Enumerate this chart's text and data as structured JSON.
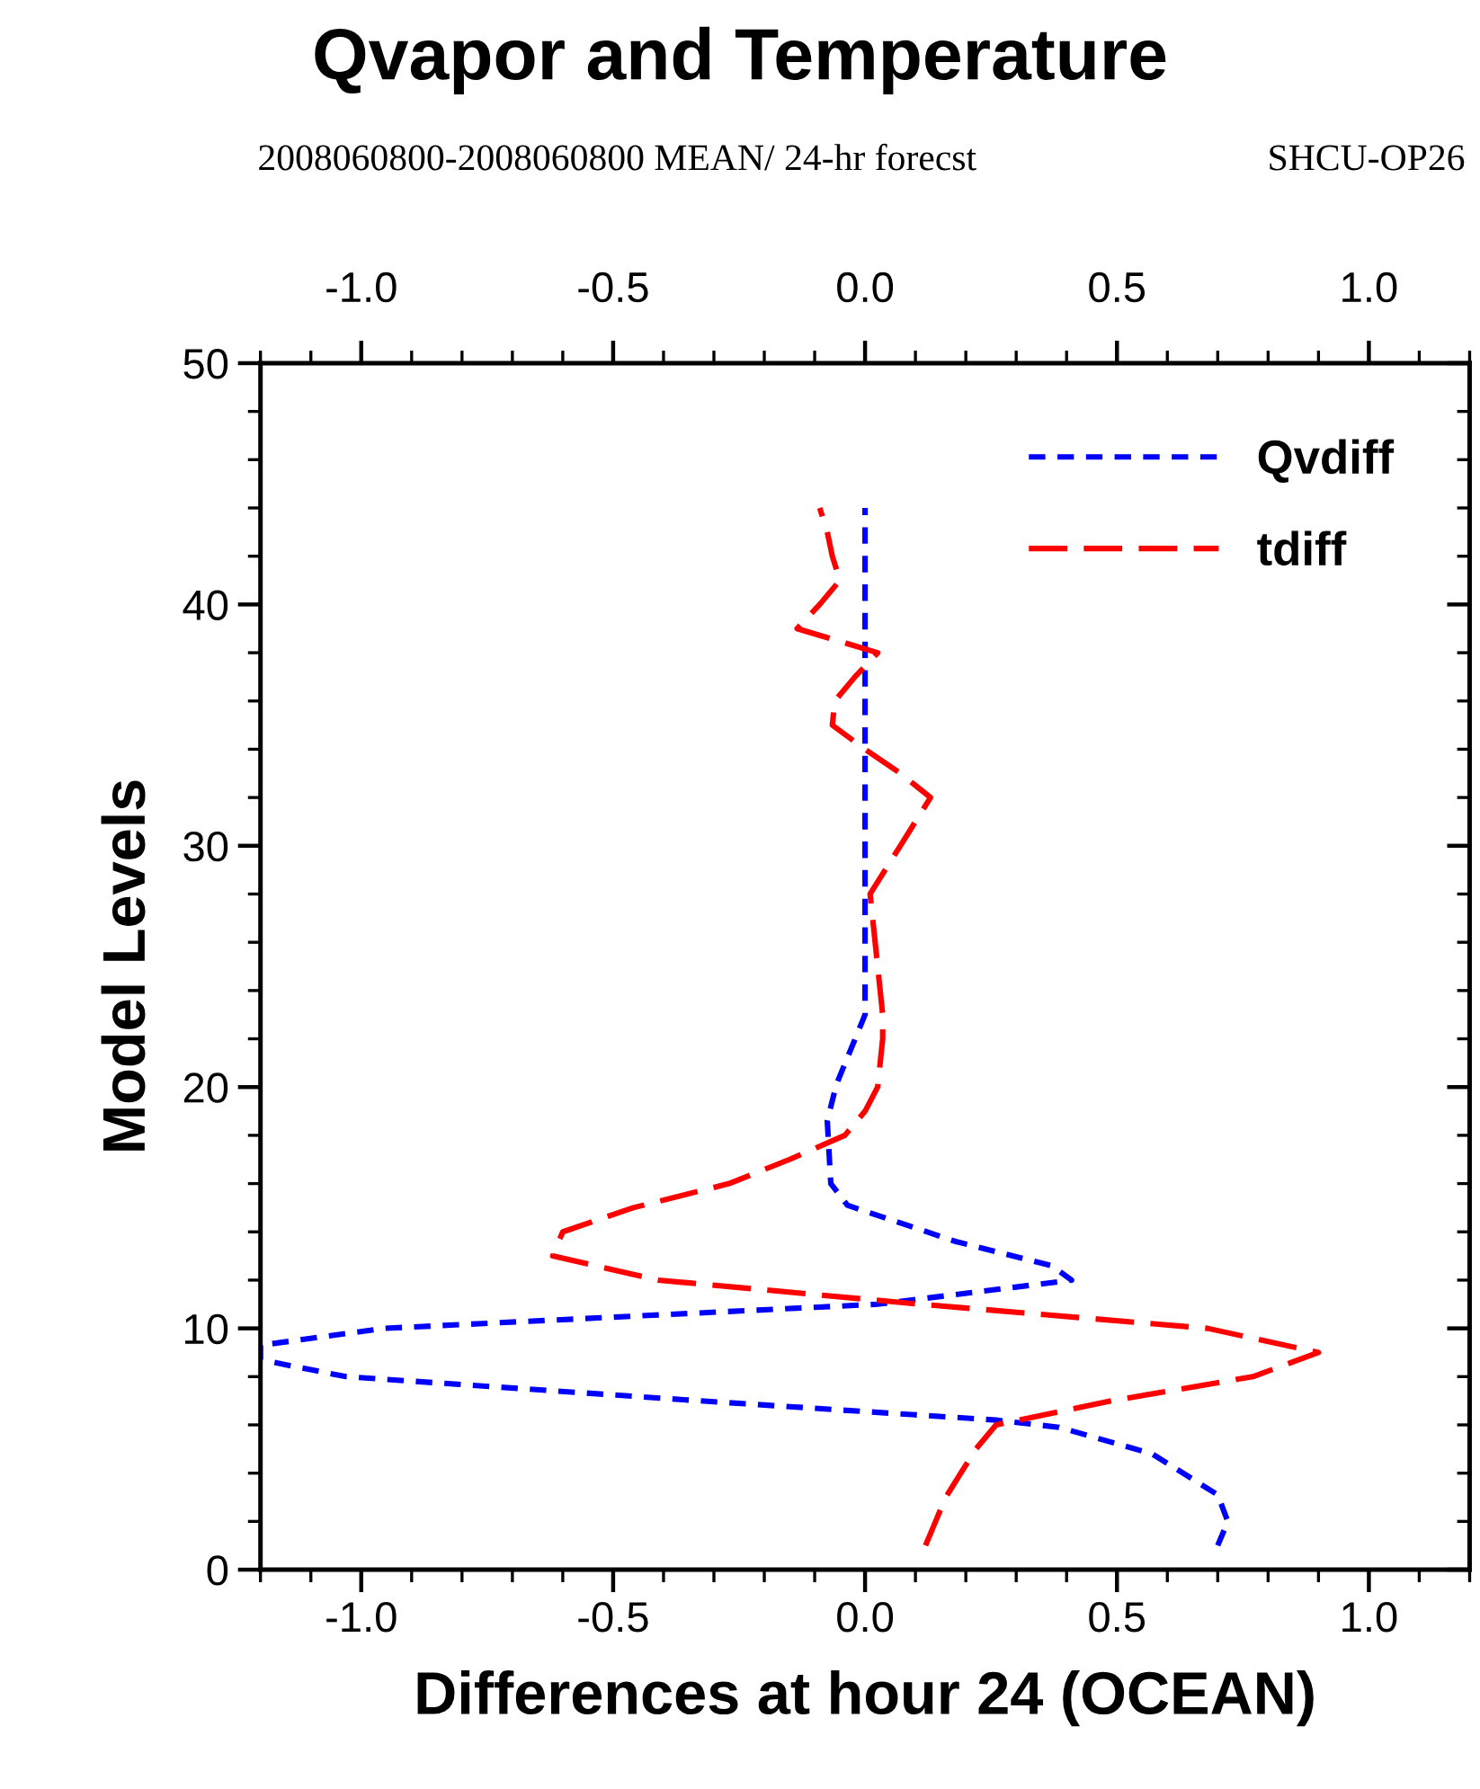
{
  "chart_data": {
    "type": "line",
    "title": "Qvapor and Temperature",
    "subtitle": "2008060800-2008060800 MEAN/ 24-hr forecst",
    "annotations": [
      "SHCU-OP26"
    ],
    "xlabel": "Differences at hour 24 (OCEAN)",
    "ylabel": "Model Levels",
    "xlim": [
      -1.2,
      1.2
    ],
    "xticks": [
      {
        "value": -1.0,
        "label": "-1.0"
      },
      {
        "value": -0.5,
        "label": "-0.5"
      },
      {
        "value": 0.0,
        "label": "0.0"
      },
      {
        "value": 0.5,
        "label": "0.5"
      },
      {
        "value": 1.0,
        "label": "1.0"
      }
    ],
    "x2lim": [
      -1.2,
      1.2
    ],
    "x2ticks": [
      {
        "value": -1.0,
        "label": "-1.0"
      },
      {
        "value": -0.5,
        "label": "-0.5"
      },
      {
        "value": 0.0,
        "label": "0.0"
      },
      {
        "value": 0.5,
        "label": "0.5"
      },
      {
        "value": 1.0,
        "label": "1.0"
      }
    ],
    "ylim": [
      0,
      50
    ],
    "yticks": [
      0,
      10,
      20,
      30,
      40,
      50
    ],
    "grid": false,
    "legend": "top right",
    "marker": "none",
    "series": [
      {
        "name": "Qvdiff",
        "color": "#0000ff",
        "line_style": "dotted",
        "x": [
          0.7,
          0.72,
          0.7,
          0.57,
          0.385,
          0.26,
          -0.33,
          -1.03,
          -1.2,
          -1.2,
          -0.955,
          0.025,
          0.41,
          0.37,
          0.18,
          -0.035,
          -0.068,
          -0.075,
          -0.057,
          0.0,
          0.0
        ],
        "values": [
          1.0,
          2.0,
          3.1,
          4.8,
          5.9,
          6.2,
          7.0,
          8.0,
          8.7,
          9.3,
          10.0,
          11.0,
          12.0,
          12.6,
          13.6,
          15.1,
          16.0,
          18.6,
          20.1,
          23.0,
          44.0
        ]
      },
      {
        "name": "tdiff",
        "color": "#ff0000",
        "line_style": "dashed",
        "x": [
          0.12,
          0.14,
          0.16,
          0.19,
          0.22,
          0.26,
          0.49,
          0.77,
          0.9,
          0.68,
          0.11,
          -0.41,
          -0.62,
          -0.6,
          -0.46,
          -0.27,
          -0.15,
          -0.04,
          0.0,
          0.025,
          0.03,
          0.035,
          0.035,
          0.03,
          0.025,
          0.02,
          0.015,
          0.01,
          0.04,
          0.07,
          0.1,
          0.13,
          0.07,
          0.0,
          -0.065,
          -0.06,
          -0.02,
          0.025,
          -0.135,
          -0.09,
          -0.05,
          -0.065,
          -0.075,
          -0.09
        ],
        "values": [
          1,
          2,
          3,
          4,
          5,
          6,
          7,
          8,
          9,
          10,
          11,
          12,
          13,
          14,
          15,
          16,
          17,
          18,
          19,
          20,
          21,
          22,
          23,
          24,
          25,
          26,
          27,
          28,
          29,
          30,
          31,
          32,
          33,
          34,
          35,
          36,
          37,
          38,
          39,
          40,
          41,
          42,
          43,
          44
        ]
      }
    ]
  }
}
